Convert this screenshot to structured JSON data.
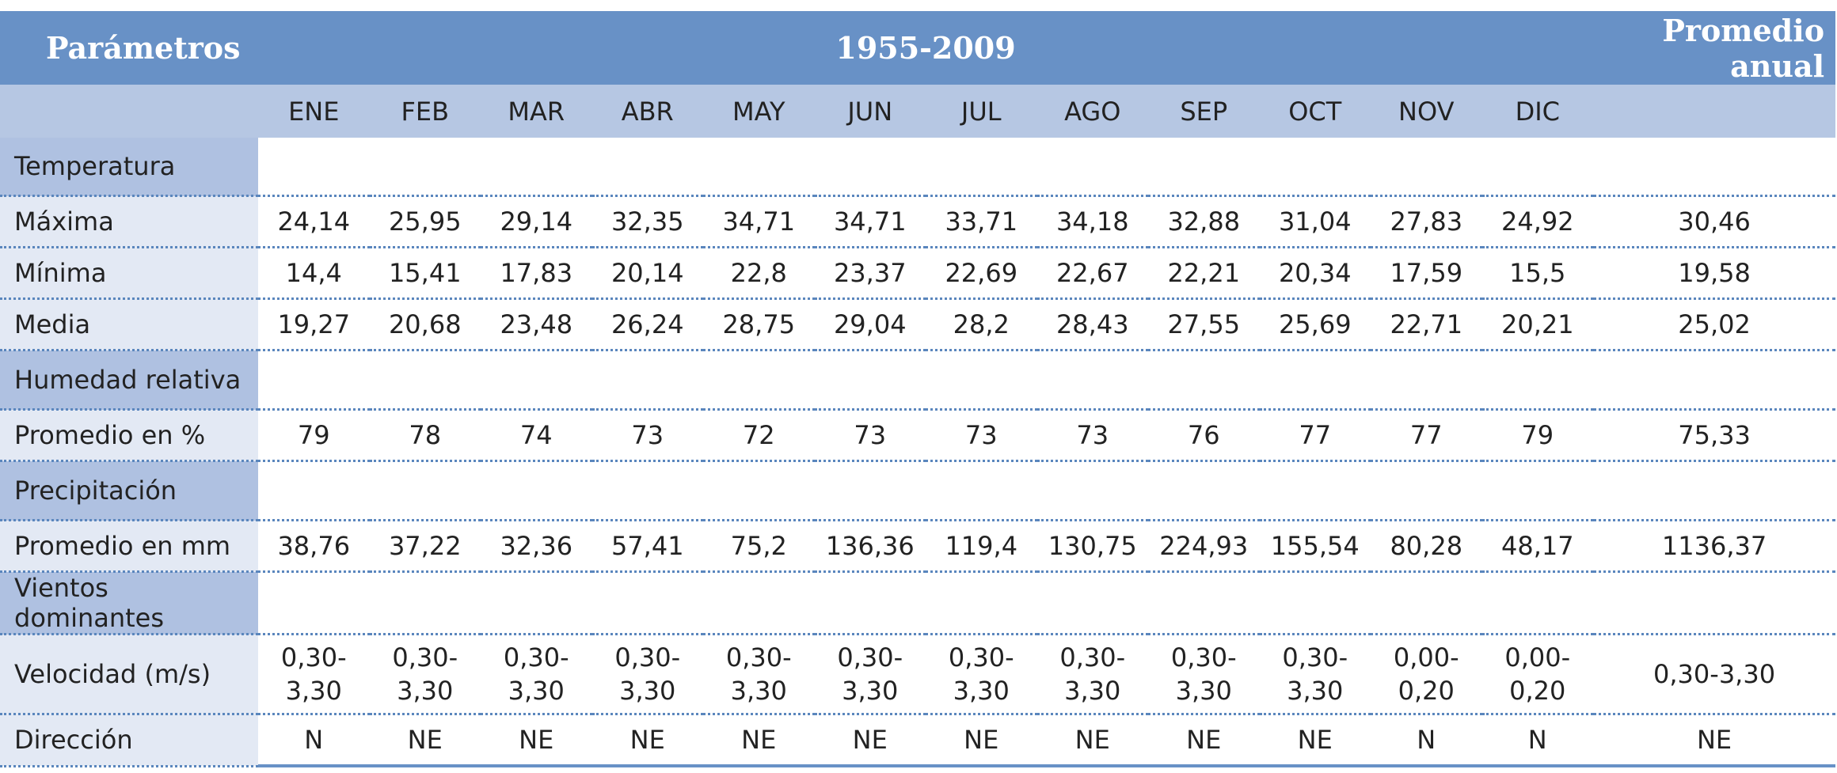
{
  "header": {
    "params_label": "Parámetros",
    "period_label": "1955-2009",
    "annual_label": "Promedio anual"
  },
  "months": [
    "ENE",
    "FEB",
    "MAR",
    "ABR",
    "MAY",
    "JUN",
    "JUL",
    "AGO",
    "SEP",
    "OCT",
    "NOV",
    "DIC"
  ],
  "sections": {
    "temperatura": "Temperatura",
    "humedad": "Humedad relativa",
    "precipitacion": "Precipitación",
    "vientos": "Vientos dominantes"
  },
  "rows": {
    "maxima": {
      "label": "Máxima",
      "values": [
        "24,14",
        "25,95",
        "29,14",
        "32,35",
        "34,71",
        "34,71",
        "33,71",
        "34,18",
        "32,88",
        "31,04",
        "27,83",
        "24,92"
      ],
      "annual": "30,46"
    },
    "minima": {
      "label": "Mínima",
      "values": [
        "14,4",
        "15,41",
        "17,83",
        "20,14",
        "22,8",
        "23,37",
        "22,69",
        "22,67",
        "22,21",
        "20,34",
        "17,59",
        "15,5"
      ],
      "annual": "19,58"
    },
    "media": {
      "label": "Media",
      "values": [
        "19,27",
        "20,68",
        "23,48",
        "26,24",
        "28,75",
        "29,04",
        "28,2",
        "28,43",
        "27,55",
        "25,69",
        "22,71",
        "20,21"
      ],
      "annual": "25,02"
    },
    "humedad_pct": {
      "label": "Promedio en %",
      "values": [
        "79",
        "78",
        "74",
        "73",
        "72",
        "73",
        "73",
        "73",
        "76",
        "77",
        "77",
        "79"
      ],
      "annual": "75,33"
    },
    "precip_mm": {
      "label": "Promedio en mm",
      "values": [
        "38,76",
        "37,22",
        "32,36",
        "57,41",
        "75,2",
        "136,36",
        "119,4",
        "130,75",
        "224,93",
        "155,54",
        "80,28",
        "48,17"
      ],
      "annual": "1136,37"
    },
    "velocidad": {
      "label": "Velocidad (m/s)",
      "values": [
        "0,30-3,30",
        "0,30-3,30",
        "0,30-3,30",
        "0,30-3,30",
        "0,30-3,30",
        "0,30-3,30",
        "0,30-3,30",
        "0,30-3,30",
        "0,30-3,30",
        "0,30-3,30",
        "0,00-0,20",
        "0,00-0,20"
      ],
      "annual": "0,30-3,30"
    },
    "direccion": {
      "label": "Dirección",
      "values": [
        "N",
        "NE",
        "NE",
        "NE",
        "NE",
        "NE",
        "NE",
        "NE",
        "NE",
        "NE",
        "N",
        "N"
      ],
      "annual": "NE"
    }
  },
  "colors": {
    "header_dark": "#6891c6",
    "header_light": "#b6c7e3",
    "section_label_bg": "#afc1e1",
    "row_label_bg": "#e3e9f4",
    "dotted_rule": "#5a86bd"
  }
}
